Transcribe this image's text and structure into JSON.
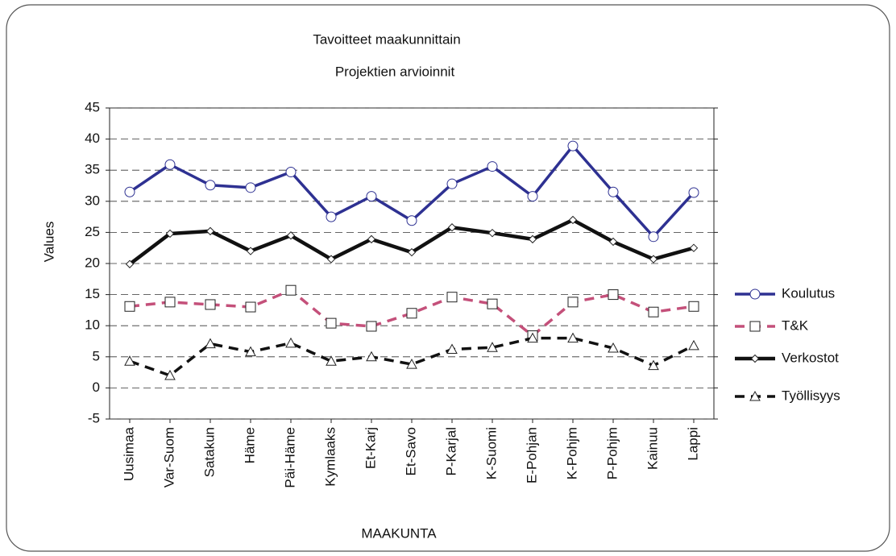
{
  "chart_data": {
    "type": "line",
    "title": "Tavoitteet maakunnittain",
    "subtitle": "Projektien arvioinnit",
    "x_label": "MAAKUNTA",
    "y_label": "Values",
    "categories": [
      "Uusimaa",
      "Var-Suom",
      "Satakun",
      "Häme",
      "Päi-Häme",
      "Kymlaaks",
      "Et-Karj",
      "Et-Savo",
      "P-Karjal",
      "K-Suomi",
      "E-Pohjan",
      "K-Pohjm",
      "P-Pohjm",
      "Kainuu",
      "Lappi"
    ],
    "series": [
      {
        "name": "Koulutus",
        "color": "#2e3192",
        "marker": "circle",
        "dashed": false,
        "values": [
          31.5,
          35.9,
          32.6,
          32.2,
          34.7,
          27.5,
          30.8,
          26.9,
          32.8,
          35.6,
          30.8,
          38.9,
          31.5,
          24.3,
          31.4
        ]
      },
      {
        "name": "T&K",
        "color": "#c4507a",
        "marker": "square",
        "dashed": true,
        "values": [
          13.1,
          13.8,
          13.4,
          13.0,
          15.7,
          10.4,
          9.9,
          12.0,
          14.6,
          13.5,
          8.4,
          13.8,
          15.0,
          12.2,
          13.1
        ]
      },
      {
        "name": "Verkostot",
        "color": "#111111",
        "marker": "diamond",
        "dashed": false,
        "values": [
          19.9,
          24.8,
          25.2,
          22.0,
          24.5,
          20.7,
          23.9,
          21.8,
          25.8,
          24.9,
          23.9,
          27.0,
          23.5,
          20.7,
          22.5
        ]
      },
      {
        "name": "Työllisyys",
        "color": "#111111",
        "marker": "triangle",
        "dashed": true,
        "values": [
          4.3,
          2.0,
          7.1,
          5.8,
          7.2,
          4.3,
          5.0,
          3.8,
          6.2,
          6.5,
          8.0,
          8.0,
          6.4,
          3.6,
          6.8
        ]
      }
    ],
    "ylim": [
      -5,
      45
    ],
    "yticks": [
      -5,
      0,
      5,
      10,
      15,
      20,
      25,
      30,
      35,
      40,
      45
    ],
    "grid": true,
    "legend": "right"
  }
}
